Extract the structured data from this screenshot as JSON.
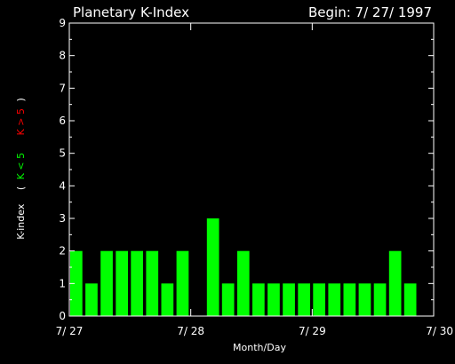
{
  "chart_data": {
    "type": "bar",
    "title": "Planetary K-Index",
    "begin_label": "Begin: 7/ 27/ 1997",
    "xlabel": "Month/Day",
    "ylabel": {
      "prefix": "K-index",
      "open_paren": "(",
      "green_part": "K < 5",
      "red_part": "K > 5",
      "close_paren": ")"
    },
    "ylim": [
      0,
      9
    ],
    "yticks": [
      "0",
      "1",
      "2",
      "3",
      "4",
      "5",
      "6",
      "7",
      "8",
      "9"
    ],
    "xlim": [
      0,
      3
    ],
    "xticks": [
      {
        "x": 0,
        "label": "7/ 27"
      },
      {
        "x": 1,
        "label": "7/ 28"
      },
      {
        "x": 2,
        "label": "7/ 29"
      },
      {
        "x": 3,
        "label": "7/ 30"
      }
    ],
    "bar_width_days": 0.1,
    "series": [
      {
        "x": [
          0.0,
          0.125,
          0.25,
          0.375,
          0.5,
          0.625,
          0.75,
          0.875,
          1.125,
          1.25,
          1.375,
          1.5,
          1.625,
          1.75,
          1.875,
          2.0,
          2.125,
          2.25,
          2.375,
          2.5,
          2.625,
          2.75
        ],
        "values": [
          2,
          1,
          2,
          2,
          2,
          2,
          1,
          2,
          3,
          1,
          2,
          1,
          1,
          1,
          1,
          1,
          1,
          1,
          1,
          1,
          2,
          1
        ]
      }
    ],
    "colors": {
      "background": "#000000",
      "axes": "#ffffff",
      "bar_low": "#00ff00",
      "bar_high": "#ff0000",
      "text": "#ffffff"
    },
    "grid": false
  }
}
